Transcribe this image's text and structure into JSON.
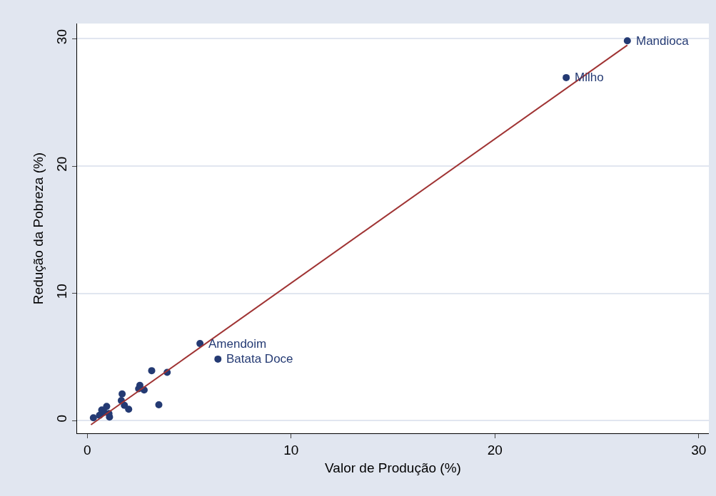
{
  "chart_data": {
    "type": "scatter",
    "xlabel": "Valor de Produção (%)",
    "ylabel": "Redução da Pobreza (%)",
    "xlim": [
      -0.5,
      30.5
    ],
    "ylim": [
      -1,
      31.2
    ],
    "xticks": [
      0,
      10,
      20,
      30
    ],
    "yticks": [
      0,
      10,
      20,
      30
    ],
    "grid": "y",
    "legend": false,
    "marker": "circle",
    "series": [
      {
        "color": "#243a73",
        "x": [
          0.3,
          0.6,
          0.71,
          0.95,
          0.83,
          1.09,
          1.06,
          1.71,
          1.67,
          1.82,
          2.03,
          2.58,
          2.52,
          2.79,
          3.16,
          3.51,
          3.92,
          5.53,
          6.41,
          23.5,
          26.5
        ],
        "values": [
          0.22,
          0.41,
          0.83,
          1.11,
          0.65,
          0.28,
          0.55,
          2.09,
          1.57,
          1.2,
          0.89,
          2.77,
          2.5,
          2.4,
          3.92,
          1.24,
          3.79,
          6.05,
          4.83,
          26.95,
          29.84
        ]
      },
      {
        "type": "line",
        "marker": "none",
        "color": "#a03434",
        "x": [
          0.18,
          26.5
        ],
        "values": [
          -0.33,
          29.5
        ]
      }
    ],
    "annotations": [
      {
        "text": "Amendoim",
        "x": 5.53,
        "y": 6.05
      },
      {
        "text": "Batata Doce",
        "x": 6.41,
        "y": 4.83
      },
      {
        "text": "Milho",
        "x": 23.5,
        "y": 26.95
      },
      {
        "text": "Mandioca",
        "x": 26.5,
        "y": 29.84
      }
    ]
  }
}
